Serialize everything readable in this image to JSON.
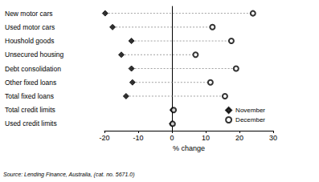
{
  "chart_data": {
    "type": "dot",
    "orientation": "horizontal",
    "categories": [
      "New motor cars",
      "Used motor cars",
      "Houshold goods",
      "Unsecured housing",
      "Debt consolidation",
      "Other fixed loans",
      "Total fixed loans",
      "Total credit limits",
      "Used credit limits"
    ],
    "series": [
      {
        "name": "November",
        "color": "#000000",
        "marker": "diamond",
        "values": [
          -19.8,
          -17.6,
          -12,
          -15,
          -12,
          -11.7,
          -13.6,
          0.2,
          0
        ]
      },
      {
        "name": "December",
        "color": "#000000",
        "marker": "open_circle",
        "values": [
          24,
          12,
          17.6,
          7,
          19,
          11.4,
          15.7,
          0.5,
          0.2
        ]
      }
    ],
    "line_style": "dashed",
    "x_label": "% change",
    "xlim": [
      -20,
      30
    ],
    "xticks": [
      -20,
      -10,
      0,
      10,
      20,
      30
    ],
    "legend": "lower right",
    "grid": false,
    "source": "Source: Lending Finance, Australia, (cat. no. 5671.0)"
  }
}
